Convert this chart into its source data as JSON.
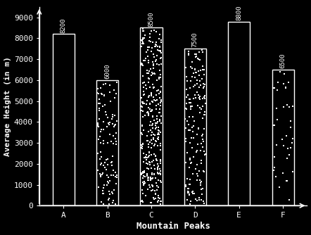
{
  "categories": [
    "A",
    "B",
    "C",
    "D",
    "E",
    "F"
  ],
  "values": [
    8200,
    6000,
    8500,
    7500,
    8800,
    6500
  ],
  "xlabel": "Mountain Peaks",
  "ylabel": "Average Height (in m)",
  "ylim": [
    0,
    9500
  ],
  "yticks": [
    0,
    1000,
    2000,
    3000,
    4000,
    5000,
    6000,
    7000,
    8000,
    9000
  ],
  "background_color": "black",
  "tick_fontsize": 8,
  "bar_width": 0.5,
  "dot_densities": [
    0,
    120,
    350,
    180,
    0,
    40
  ],
  "dot_sizes": [
    0,
    3.0,
    4.5,
    3.0,
    0,
    2.5
  ]
}
